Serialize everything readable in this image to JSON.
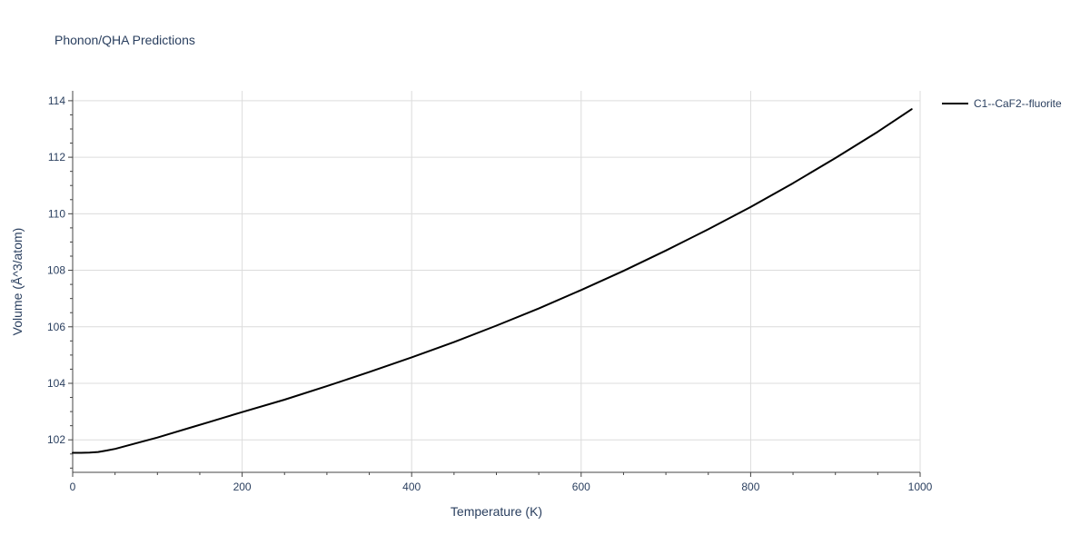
{
  "chart_data": {
    "type": "line",
    "title": "Phonon/QHA Predictions",
    "xlabel": "Temperature (K)",
    "ylabel": "Volume (Å^3/atom)",
    "xlim": [
      0,
      1000
    ],
    "ylim": [
      100.85,
      114.35
    ],
    "x_ticks": [
      0,
      200,
      400,
      600,
      800,
      1000
    ],
    "x_tick_labels": [
      "0",
      "200",
      "400",
      "600",
      "800",
      "1000"
    ],
    "y_ticks": [
      102,
      104,
      106,
      108,
      110,
      112,
      114
    ],
    "y_tick_labels": [
      "102",
      "104",
      "106",
      "108",
      "110",
      "112",
      "114"
    ],
    "grid": true,
    "legend_position": "top-right",
    "series": [
      {
        "name": "C1--CaF2--fluorite",
        "color": "#000000",
        "x": [
          0,
          10,
          20,
          30,
          40,
          50,
          60,
          70,
          80,
          100,
          120,
          140,
          160,
          180,
          200,
          250,
          300,
          350,
          400,
          450,
          500,
          550,
          600,
          650,
          700,
          750,
          800,
          850,
          900,
          950,
          990
        ],
        "y": [
          101.54,
          101.54,
          101.55,
          101.57,
          101.62,
          101.68,
          101.76,
          101.84,
          101.92,
          102.08,
          102.26,
          102.44,
          102.62,
          102.8,
          102.98,
          103.42,
          103.9,
          104.4,
          104.92,
          105.46,
          106.04,
          106.65,
          107.3,
          107.98,
          108.7,
          109.45,
          110.24,
          111.08,
          111.97,
          112.9,
          113.7
        ]
      }
    ]
  }
}
